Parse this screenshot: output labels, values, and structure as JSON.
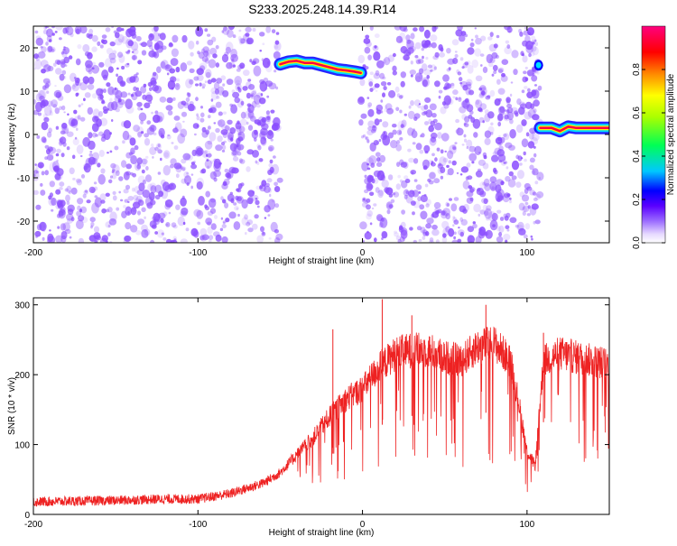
{
  "title": "S233.2025.248.14.39.R14",
  "chart_data": [
    {
      "type": "heatmap",
      "xlabel": "Height of straight line (km)",
      "ylabel": "Frequency (Hz)",
      "xlim": [
        -200,
        150
      ],
      "ylim": [
        -25,
        25
      ],
      "xticks": [
        -200,
        -100,
        0,
        100
      ],
      "xtick_labels": [
        "-200",
        "-100",
        "0",
        "100"
      ],
      "yticks": [
        20,
        10,
        0,
        -10,
        -20
      ],
      "ytick_labels": [
        "20",
        "10",
        "0",
        "-10",
        "-20"
      ],
      "gaps_x": [
        [
          -50,
          -1
        ],
        [
          108,
          150
        ]
      ],
      "signal_tracks": [
        {
          "x": [
            -50,
            -45,
            -40,
            -35,
            -30,
            -25,
            -20,
            -15,
            -10,
            -5,
            -1
          ],
          "y": [
            16.2,
            16.8,
            17.0,
            16.5,
            16.5,
            16.0,
            15.5,
            15.0,
            14.8,
            14.5,
            14.2
          ]
        },
        {
          "x": [
            108,
            115,
            120,
            125,
            130,
            140,
            150
          ],
          "y": [
            1.5,
            1.5,
            0.8,
            1.8,
            1.5,
            1.5,
            1.5
          ]
        }
      ],
      "isolated_blob": {
        "x": 107,
        "y": 16
      },
      "colorbar": {
        "label": "Normalized spectral amplitude",
        "ticks": [
          0.0,
          0.2,
          0.4,
          0.6,
          0.8
        ],
        "tick_labels": [
          "0.0",
          "0.2",
          "0.4",
          "0.6",
          "0.8"
        ],
        "range": [
          0,
          1
        ],
        "colors": [
          "#ffffff",
          "#d7c8ff",
          "#6a00ff",
          "#0000ff",
          "#00c8ff",
          "#00ff00",
          "#ffff00",
          "#ff8000",
          "#ff0000",
          "#ff0080"
        ]
      },
      "noise_color": "#8a4dff"
    },
    {
      "type": "line",
      "xlabel": "Height of straight line (km)",
      "ylabel": "SNR (10 * v/v)",
      "xlim": [
        -200,
        150
      ],
      "ylim": [
        0,
        310
      ],
      "xticks": [
        -200,
        -100,
        0,
        100
      ],
      "xtick_labels": [
        "-200",
        "-100",
        "0",
        "100"
      ],
      "yticks": [
        0,
        100,
        200,
        300
      ],
      "ytick_labels": [
        "0",
        "100",
        "200",
        "300"
      ],
      "color": "#ee2222",
      "envelope": {
        "x": [
          -200,
          -150,
          -120,
          -100,
          -80,
          -60,
          -50,
          -40,
          -30,
          -20,
          -10,
          0,
          10,
          20,
          30,
          40,
          50,
          60,
          70,
          80,
          90,
          95,
          100,
          105,
          110,
          120,
          130,
          140,
          150
        ],
        "y": [
          18,
          20,
          22,
          22,
          30,
          45,
          60,
          85,
          110,
          140,
          165,
          180,
          210,
          230,
          235,
          235,
          225,
          220,
          240,
          245,
          220,
          160,
          90,
          70,
          220,
          230,
          225,
          220,
          215
        ]
      },
      "spikes": [
        {
          "x": -18,
          "y": 265
        },
        {
          "x": 12,
          "y": 308
        },
        {
          "x": 30,
          "y": 285
        },
        {
          "x": 75,
          "y": 300
        },
        {
          "x": 110,
          "y": 260
        }
      ]
    }
  ]
}
